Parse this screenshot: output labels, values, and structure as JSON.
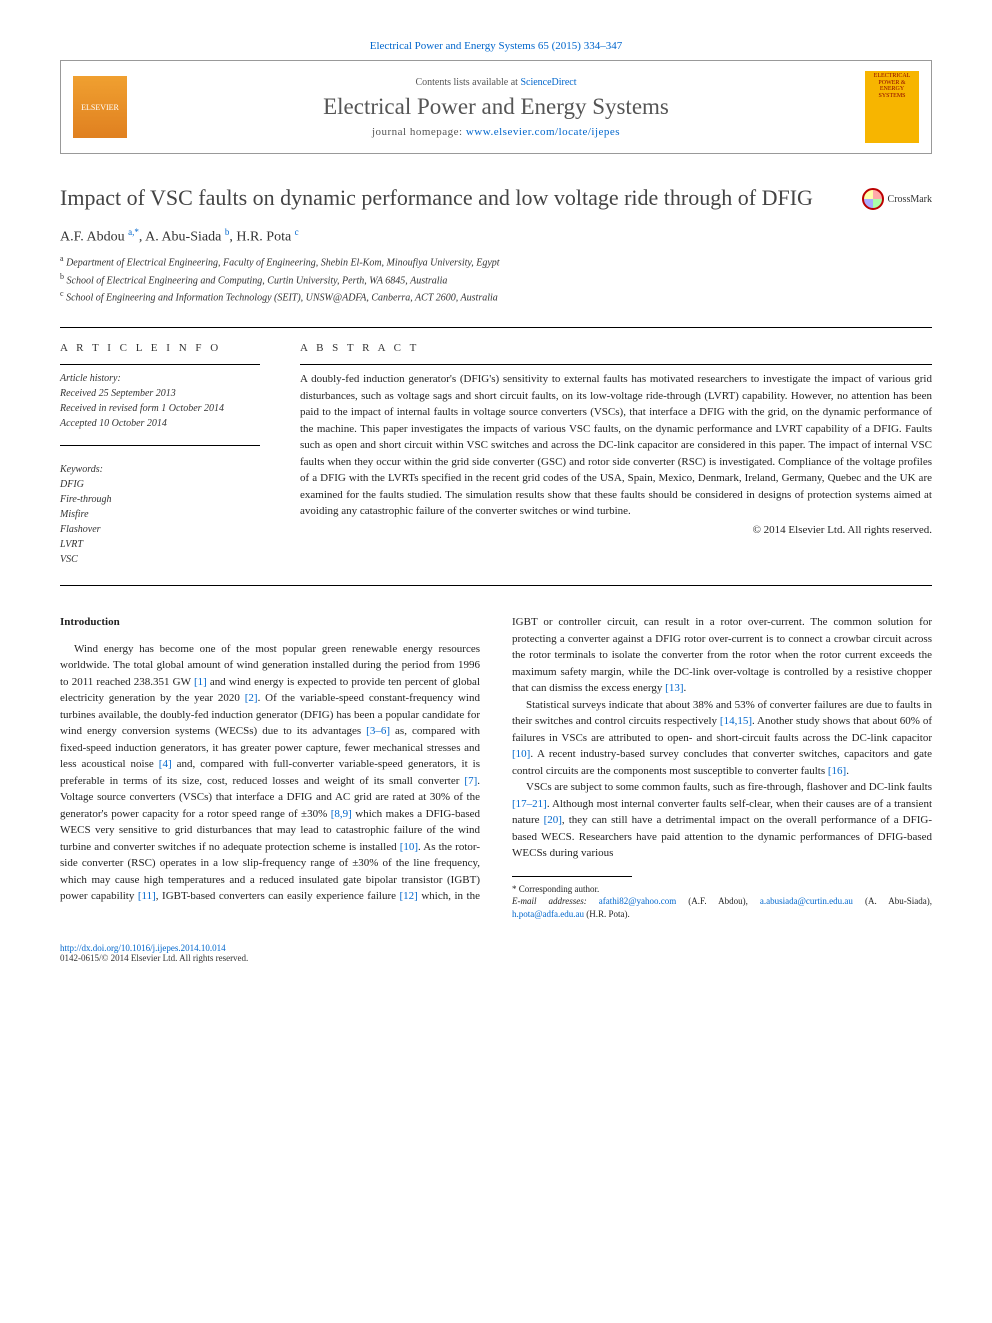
{
  "header": {
    "citation": "Electrical Power and Energy Systems 65 (2015) 334–347",
    "contents_prefix": "Contents lists available at ",
    "contents_link": "ScienceDirect",
    "journal_title": "Electrical Power and Energy Systems",
    "homepage_prefix": "journal homepage: ",
    "homepage_url": "www.elsevier.com/locate/ijepes",
    "elsevier_label": "ELSEVIER",
    "cover_text": "ELECTRICAL POWER & ENERGY SYSTEMS"
  },
  "crossmark": {
    "label": "CrossMark"
  },
  "article": {
    "title": "Impact of VSC faults on dynamic performance and low voltage ride through of DFIG",
    "authors_html": "A.F. Abdou <sup>a,*</sup>, A. Abu-Siada <sup>b</sup>, H.R. Pota <sup>c</sup>",
    "affiliations": [
      {
        "mark": "a",
        "text": "Department of Electrical Engineering, Faculty of Engineering, Shebin El-Kom, Minoufiya University, Egypt"
      },
      {
        "mark": "b",
        "text": "School of Electrical Engineering and Computing, Curtin University, Perth, WA 6845, Australia"
      },
      {
        "mark": "c",
        "text": "School of Engineering and Information Technology (SEIT), UNSW@ADFA, Canberra, ACT 2600, Australia"
      }
    ]
  },
  "info": {
    "heading": "A R T I C L E   I N F O",
    "history_label": "Article history:",
    "received": "Received 25 September 2013",
    "revised": "Received in revised form 1 October 2014",
    "accepted": "Accepted 10 October 2014",
    "keywords_label": "Keywords:",
    "keywords": [
      "DFIG",
      "Fire-through",
      "Misfire",
      "Flashover",
      "LVRT",
      "VSC"
    ]
  },
  "abstract": {
    "heading": "A B S T R A C T",
    "text": "A doubly-fed induction generator's (DFIG's) sensitivity to external faults has motivated researchers to investigate the impact of various grid disturbances, such as voltage sags and short circuit faults, on its low-voltage ride-through (LVRT) capability. However, no attention has been paid to the impact of internal faults in voltage source converters (VSCs), that interface a DFIG with the grid, on the dynamic performance of the machine. This paper investigates the impacts of various VSC faults, on the dynamic performance and LVRT capability of a DFIG. Faults such as open and short circuit within VSC switches and across the DC-link capacitor are considered in this paper. The impact of internal VSC faults when they occur within the grid side converter (GSC) and rotor side converter (RSC) is investigated. Compliance of the voltage profiles of a DFIG with the LVRTs specified in the recent grid codes of the USA, Spain, Mexico, Denmark, Ireland, Germany, Quebec and the UK are examined for the faults studied. The simulation results show that these faults should be considered in designs of protection systems aimed at avoiding any catastrophic failure of the converter switches or wind turbine.",
    "copyright": "© 2014 Elsevier Ltd. All rights reserved."
  },
  "body": {
    "intro_heading": "Introduction",
    "p1a": "Wind energy has become one of the most popular green renewable energy resources worldwide. The total global amount of wind generation installed during the period from 1996 to 2011 reached 238.351 GW ",
    "r1": "[1]",
    "p1b": " and wind energy is expected to provide ten percent of global electricity generation by the year 2020 ",
    "r2": "[2]",
    "p1c": ". Of the variable-speed constant-frequency wind turbines available, the doubly-fed induction generator (DFIG) has been a popular candidate for wind energy conversion systems (WECSs) due to its advantages ",
    "r3": "[3–6]",
    "p1d": " as, compared with fixed-speed induction generators, it has greater power capture, fewer mechanical stresses and less acoustical noise ",
    "r4": "[4]",
    "p1e": " and, compared with full-converter variable-speed generators, it is preferable in terms of its size, cost, reduced losses and weight of its small converter ",
    "r7": "[7]",
    "p1f": ". Voltage source converters (VSCs) that interface a DFIG and AC grid are rated at 30% of the generator's power capacity for a rotor speed range of ±30% ",
    "r89": "[8,9]",
    "p1g": " which makes a DFIG-based WECS very sensitive to grid disturbances that may lead to catastrophic failure of the wind turbine and converter switches if no adequate protection scheme is",
    "p2a": "installed ",
    "r10": "[10]",
    "p2b": ". As the rotor-side converter (RSC) operates in a low slip-frequency range of ±30% of the line frequency, which may cause high temperatures and a reduced insulated gate bipolar transistor (IGBT) power capability ",
    "r11": "[11]",
    "p2c": ", IGBT-based converters can easily experience failure ",
    "r12": "[12]",
    "p2d": " which, in the IGBT or controller circuit, can result in a rotor over-current. The common solution for protecting a converter against a DFIG rotor over-current is to connect a crowbar circuit across the rotor terminals to isolate the converter from the rotor when the rotor current exceeds the maximum safety margin, while the DC-link over-voltage is controlled by a resistive chopper that can dismiss the excess energy ",
    "r13": "[13]",
    "p2e": ".",
    "p3a": "Statistical surveys indicate that about 38% and 53% of converter failures are due to faults in their switches and control circuits respectively ",
    "r1415": "[14,15]",
    "p3b": ". Another study shows that about 60% of failures in VSCs are attributed to open- and short-circuit faults across the DC-link capacitor ",
    "r10b": "[10]",
    "p3c": ". A recent industry-based survey concludes that converter switches, capacitors and gate control circuits are the components most susceptible to converter faults ",
    "r16": "[16]",
    "p3d": ".",
    "p4a": "VSCs are subject to some common faults, such as fire-through, flashover and DC-link faults ",
    "r1721": "[17–21]",
    "p4b": ". Although most internal converter faults self-clear, when their causes are of a transient nature ",
    "r20": "[20]",
    "p4c": ", they can still have a detrimental impact on the overall performance of a DFIG-based WECS. Researchers have paid attention to the dynamic performances of DFIG-based WECSs during various"
  },
  "footnotes": {
    "corr": "* Corresponding author.",
    "emails_label": "E-mail addresses: ",
    "e1": "afathi82@yahoo.com",
    "n1": " (A.F. Abdou), ",
    "e2": "a.abusiada@curtin.edu.au",
    "n2": " (A. Abu-Siada), ",
    "e3": "h.pota@adfa.edu.au",
    "n3": " (H.R. Pota)."
  },
  "footer": {
    "doi": "http://dx.doi.org/10.1016/j.ijepes.2014.10.014",
    "issn_copyright": "0142-0615/© 2014 Elsevier Ltd. All rights reserved."
  },
  "colors": {
    "link": "#0066cc",
    "text": "#222222",
    "border": "#999999",
    "elsevier_orange": "#e08020",
    "cover_yellow": "#f7b500"
  }
}
